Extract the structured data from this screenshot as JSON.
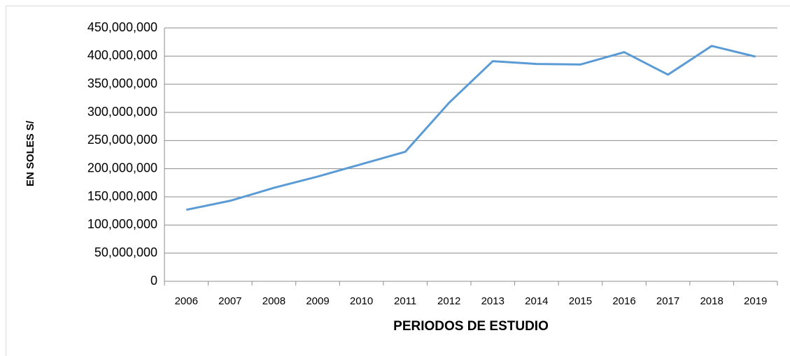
{
  "chart_data": {
    "type": "line",
    "x_label": "PERIODOS DE ESTUDIO",
    "y_label": "EN SOLES S/",
    "categories": [
      "2006",
      "2007",
      "2008",
      "2009",
      "2010",
      "2011",
      "2012",
      "2013",
      "2014",
      "2015",
      "2016",
      "2017",
      "2018",
      "2019"
    ],
    "series": [
      {
        "color": "#5b9bd5",
        "values": [
          127000000,
          143000000,
          166000000,
          186000000,
          208000000,
          230000000,
          317000000,
          391000000,
          386000000,
          385000000,
          407000000,
          367000000,
          418000000,
          399000000
        ]
      }
    ],
    "ylim": [
      0,
      450000000
    ],
    "yticks": [
      0,
      {
        "value": 50000000,
        "label": "50,000,000"
      },
      {
        "value": 100000000,
        "label": "100,000,000"
      },
      {
        "value": 150000000,
        "label": "150,000,000"
      },
      {
        "value": 200000000,
        "label": "200,000,000"
      },
      {
        "value": 250000000,
        "label": "250,000,000"
      },
      {
        "value": 300000000,
        "label": "300,000,000"
      },
      {
        "value": 350000000,
        "label": "350,000,000"
      },
      {
        "value": 400000000,
        "label": "400,000,000"
      },
      {
        "value": 450000000,
        "label": "450,000,000"
      }
    ],
    "grid": true
  }
}
